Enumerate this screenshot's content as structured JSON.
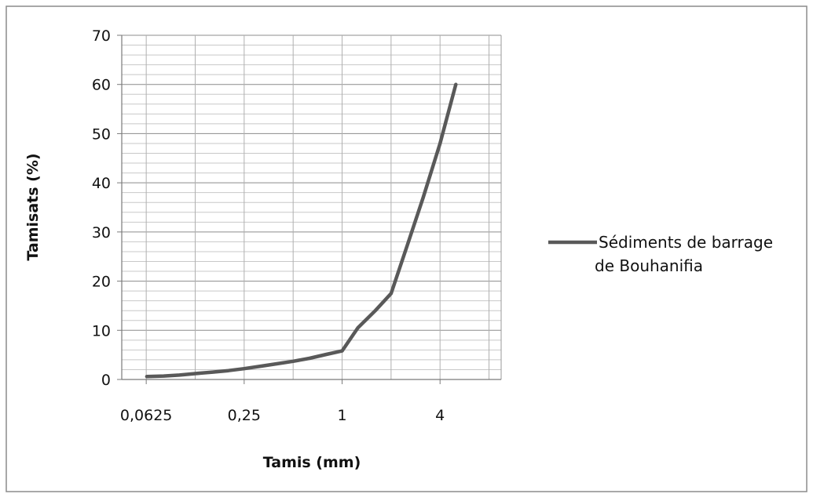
{
  "chart_data": {
    "type": "line",
    "title": "",
    "xlabel": "Tamis (mm)",
    "ylabel": "Tamisats (%)",
    "x_scale": "log2",
    "xlim": [
      0.0442,
      9.5
    ],
    "ylim": [
      0,
      70
    ],
    "y_ticks": [
      0,
      10,
      20,
      30,
      40,
      50,
      60,
      70
    ],
    "x_ticks": [
      {
        "value": 0.0625,
        "label": "0,0625"
      },
      {
        "value": 0.25,
        "label": "0,25"
      },
      {
        "value": 1,
        "label": "1"
      },
      {
        "value": 4,
        "label": "4"
      }
    ],
    "grid": true,
    "legend_position": "right",
    "series": [
      {
        "name": "Sédiments de barrage de Bouhanifia",
        "name_lines": [
          "Sédiments de barrage",
          "de Bouhanifia"
        ],
        "color": "#595959",
        "points": [
          {
            "x": 0.063,
            "y": 0.6
          },
          {
            "x": 0.08,
            "y": 0.7
          },
          {
            "x": 0.1,
            "y": 0.9
          },
          {
            "x": 0.125,
            "y": 1.2
          },
          {
            "x": 0.16,
            "y": 1.5
          },
          {
            "x": 0.2,
            "y": 1.8
          },
          {
            "x": 0.25,
            "y": 2.2
          },
          {
            "x": 0.315,
            "y": 2.7
          },
          {
            "x": 0.4,
            "y": 3.2
          },
          {
            "x": 0.5,
            "y": 3.7
          },
          {
            "x": 0.63,
            "y": 4.3
          },
          {
            "x": 0.8,
            "y": 5.1
          },
          {
            "x": 1,
            "y": 5.8
          },
          {
            "x": 1.25,
            "y": 10.5
          },
          {
            "x": 1.6,
            "y": 14
          },
          {
            "x": 2,
            "y": 17.5
          },
          {
            "x": 2.5,
            "y": 27
          },
          {
            "x": 3.15,
            "y": 37
          },
          {
            "x": 4,
            "y": 48
          },
          {
            "x": 5,
            "y": 60
          }
        ]
      }
    ]
  }
}
